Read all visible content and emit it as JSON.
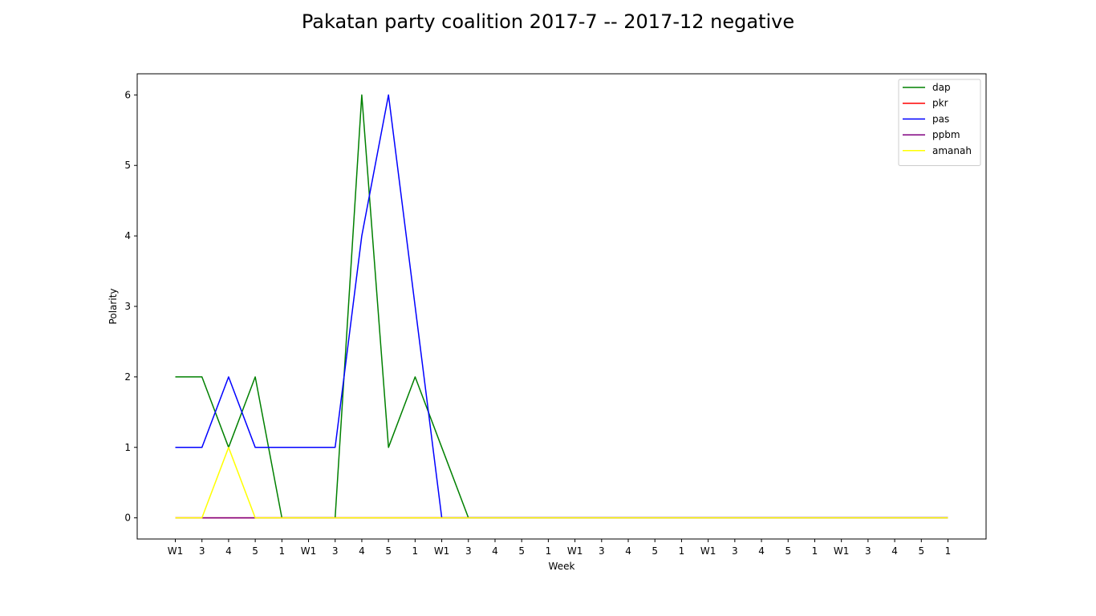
{
  "chart_data": {
    "type": "line",
    "title": "Pakatan party coalition 2017-7 -- 2017-12 negative",
    "xlabel": "Week",
    "ylabel": "Polarity",
    "categories": [
      "W1",
      "3",
      "4",
      "5",
      "1",
      "W1",
      "3",
      "4",
      "5",
      "1",
      "W1",
      "3",
      "4",
      "5",
      "1",
      "W1",
      "3",
      "4",
      "5",
      "1",
      "W1",
      "3",
      "4",
      "5",
      "1",
      "W1",
      "3",
      "4",
      "5",
      "1"
    ],
    "yticks": [
      0,
      1,
      2,
      3,
      4,
      5,
      6
    ],
    "ylim": [
      -0.3,
      6.3
    ],
    "grid": false,
    "legend_position": "top-right",
    "series": [
      {
        "name": "dap",
        "color": "#008000",
        "values": [
          2,
          2,
          1,
          2,
          0,
          0,
          0,
          6,
          1,
          2,
          1,
          0,
          0,
          0,
          0,
          0,
          0,
          0,
          0,
          0,
          0,
          0,
          0,
          0,
          0,
          0,
          0,
          0,
          0,
          0
        ]
      },
      {
        "name": "pkr",
        "color": "#ff0000",
        "values": [
          0,
          0,
          0,
          0,
          0,
          0,
          0,
          0,
          0,
          0,
          0,
          0,
          0,
          0,
          0,
          0,
          0,
          0,
          0,
          0,
          0,
          0,
          0,
          0,
          0,
          0,
          0,
          0,
          0,
          0
        ]
      },
      {
        "name": "pas",
        "color": "#0000ff",
        "values": [
          1,
          1,
          2,
          1,
          1,
          1,
          1,
          4,
          6,
          3,
          0,
          0,
          0,
          0,
          0,
          0,
          0,
          0,
          0,
          0,
          0,
          0,
          0,
          0,
          0,
          0,
          0,
          0,
          0,
          0
        ]
      },
      {
        "name": "ppbm",
        "color": "#800080",
        "values": [
          0,
          0,
          0,
          0,
          0,
          0,
          0,
          0,
          0,
          0,
          0,
          0,
          0,
          0,
          0,
          0,
          0,
          0,
          0,
          0,
          0,
          0,
          0,
          0,
          0,
          0,
          0,
          0,
          0,
          0
        ]
      },
      {
        "name": "amanah",
        "color": "#ffff00",
        "values": [
          0,
          0,
          1,
          0,
          0,
          0,
          0,
          0,
          0,
          0,
          0,
          0,
          0,
          0,
          0,
          0,
          0,
          0,
          0,
          0,
          0,
          0,
          0,
          0,
          0,
          0,
          0,
          0,
          0,
          0
        ]
      }
    ]
  }
}
